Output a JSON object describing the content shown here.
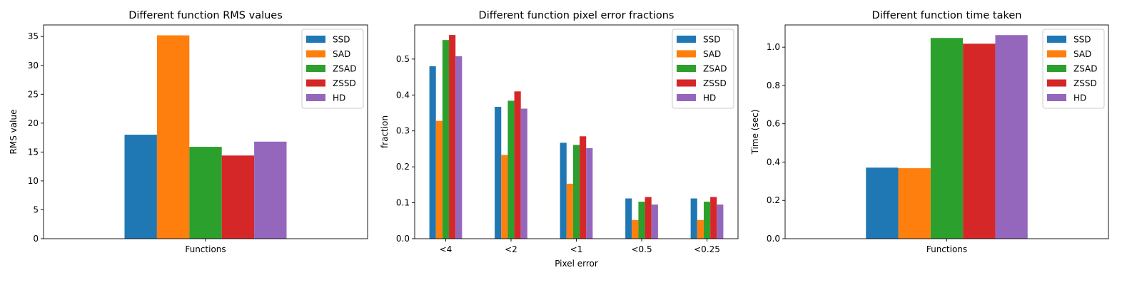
{
  "series_names": [
    "SSD",
    "SAD",
    "ZSAD",
    "ZSSD",
    "HD"
  ],
  "colors": [
    "#1f77b4",
    "#ff7f0e",
    "#2ca02c",
    "#d62728",
    "#9467bd"
  ],
  "chart_data": [
    {
      "type": "bar",
      "title": "Different function RMS values",
      "xlabel": "",
      "ylabel": "RMS value",
      "categories": [
        "Functions"
      ],
      "series": [
        {
          "name": "SSD",
          "values": [
            18.0
          ]
        },
        {
          "name": "SAD",
          "values": [
            35.2
          ]
        },
        {
          "name": "ZSAD",
          "values": [
            15.9
          ]
        },
        {
          "name": "ZSSD",
          "values": [
            14.4
          ]
        },
        {
          "name": "HD",
          "values": [
            16.8
          ]
        }
      ],
      "ylim": [
        0,
        37
      ],
      "yticks": [
        0,
        5,
        10,
        15,
        20,
        25,
        30,
        35
      ],
      "tick_format": "int",
      "legend": "top-right",
      "grid": false
    },
    {
      "type": "bar",
      "title": "Different function pixel error fractions",
      "xlabel": "Pixel error",
      "ylabel": "fraction",
      "categories": [
        "<4",
        "<2",
        "<1",
        "<0.5",
        "<0.25"
      ],
      "series": [
        {
          "name": "SSD",
          "values": [
            0.48,
            0.367,
            0.267,
            0.112,
            0.112
          ]
        },
        {
          "name": "SAD",
          "values": [
            0.328,
            0.233,
            0.153,
            0.052,
            0.052
          ]
        },
        {
          "name": "ZSAD",
          "values": [
            0.553,
            0.384,
            0.261,
            0.103,
            0.103
          ]
        },
        {
          "name": "ZSSD",
          "values": [
            0.567,
            0.41,
            0.285,
            0.116,
            0.116
          ]
        },
        {
          "name": "HD",
          "values": [
            0.508,
            0.362,
            0.252,
            0.095,
            0.095
          ]
        }
      ],
      "ylim": [
        0,
        0.595
      ],
      "yticks": [
        0.0,
        0.1,
        0.2,
        0.3,
        0.4,
        0.5
      ],
      "tick_format": "1dp",
      "legend": "top-right",
      "grid": false
    },
    {
      "type": "bar",
      "title": "Different function time taken",
      "xlabel": "",
      "ylabel": "Time (sec)",
      "categories": [
        "Functions"
      ],
      "series": [
        {
          "name": "SSD",
          "values": [
            0.371
          ]
        },
        {
          "name": "SAD",
          "values": [
            0.368
          ]
        },
        {
          "name": "ZSAD",
          "values": [
            1.048
          ]
        },
        {
          "name": "ZSSD",
          "values": [
            1.018
          ]
        },
        {
          "name": "HD",
          "values": [
            1.063
          ]
        }
      ],
      "ylim": [
        0,
        1.116
      ],
      "yticks": [
        0.0,
        0.2,
        0.4,
        0.6,
        0.8,
        1.0
      ],
      "tick_format": "1dp",
      "legend": "top-right",
      "grid": false
    }
  ]
}
